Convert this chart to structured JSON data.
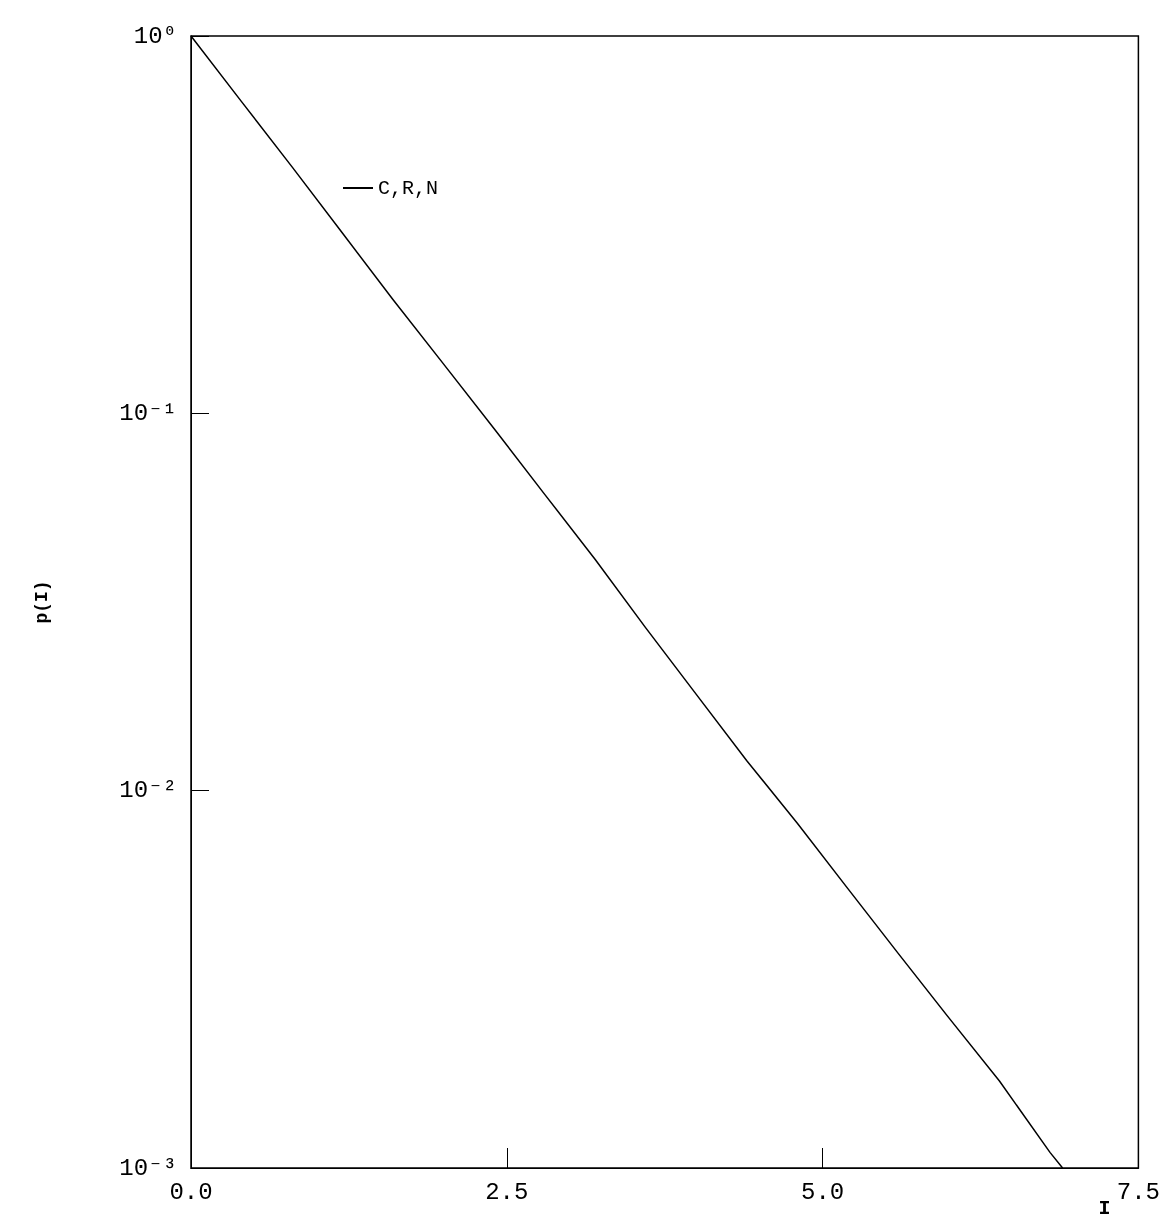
{
  "chart_data": {
    "type": "line",
    "xlabel": "I",
    "ylabel": "p(I)",
    "log": "y",
    "grid": false,
    "legend": "top left",
    "marker": "none",
    "line_style": "solid",
    "xlim": [
      0,
      7.5
    ],
    "ylim": [
      0.001,
      1
    ],
    "xticks": [
      {
        "value": 0,
        "label": "0.0"
      },
      {
        "value": 2.5,
        "label": "2.5"
      },
      {
        "value": 5,
        "label": "5.0"
      },
      {
        "value": 7.5,
        "label": "7.5"
      }
    ],
    "yticks": [
      {
        "value": 0.001,
        "label": "10⁻³"
      },
      {
        "value": 0.01,
        "label": "10⁻²"
      },
      {
        "value": 0.1,
        "label": "10⁻¹"
      },
      {
        "value": 1,
        "label": "10⁰"
      }
    ],
    "x": [
      0,
      0.4,
      0.8,
      1.2,
      1.6,
      2.0,
      2.4,
      2.8,
      3.2,
      3.6,
      4.0,
      4.4,
      4.8,
      5.2,
      5.6,
      6.0,
      6.4,
      6.8,
      6.9
    ],
    "series": [
      {
        "name": "C,R,N",
        "color": "#000000",
        "values": [
          1.0,
          0.67,
          0.45,
          0.3,
          0.2,
          0.135,
          0.091,
          0.061,
          0.041,
          0.027,
          0.018,
          0.012,
          0.0082,
          0.0055,
          0.0037,
          0.0025,
          0.0017,
          0.0011,
          0.001
        ]
      }
    ]
  }
}
